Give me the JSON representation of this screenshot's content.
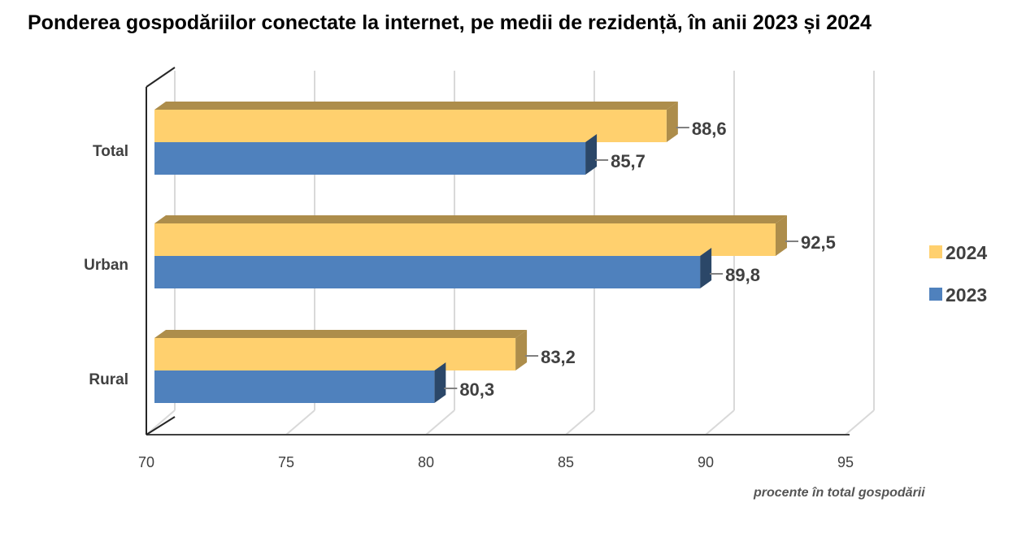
{
  "chart_data": {
    "type": "bar",
    "orientation": "horizontal",
    "title": "Ponderea gospodăriilor conectate la internet, pe medii de rezidență, în anii 2023 și 2024",
    "xlabel": "procente în total gospodării",
    "ylabel": "",
    "categories": [
      "Total",
      "Urban",
      "Rural"
    ],
    "series": [
      {
        "name": "2024",
        "color": "#FFD06E",
        "values": [
          88.6,
          92.5,
          83.2
        ],
        "labels": [
          "88,6",
          "92,5",
          "83,2"
        ]
      },
      {
        "name": "2023",
        "color": "#4F81BD",
        "values": [
          85.7,
          89.8,
          80.3
        ],
        "labels": [
          "85,7",
          "89,8",
          "80,3"
        ]
      }
    ],
    "xlim": [
      70,
      95
    ],
    "xticks": [
      "70",
      "75",
      "80",
      "85",
      "90",
      "95"
    ],
    "grid": true,
    "legend": "right"
  }
}
